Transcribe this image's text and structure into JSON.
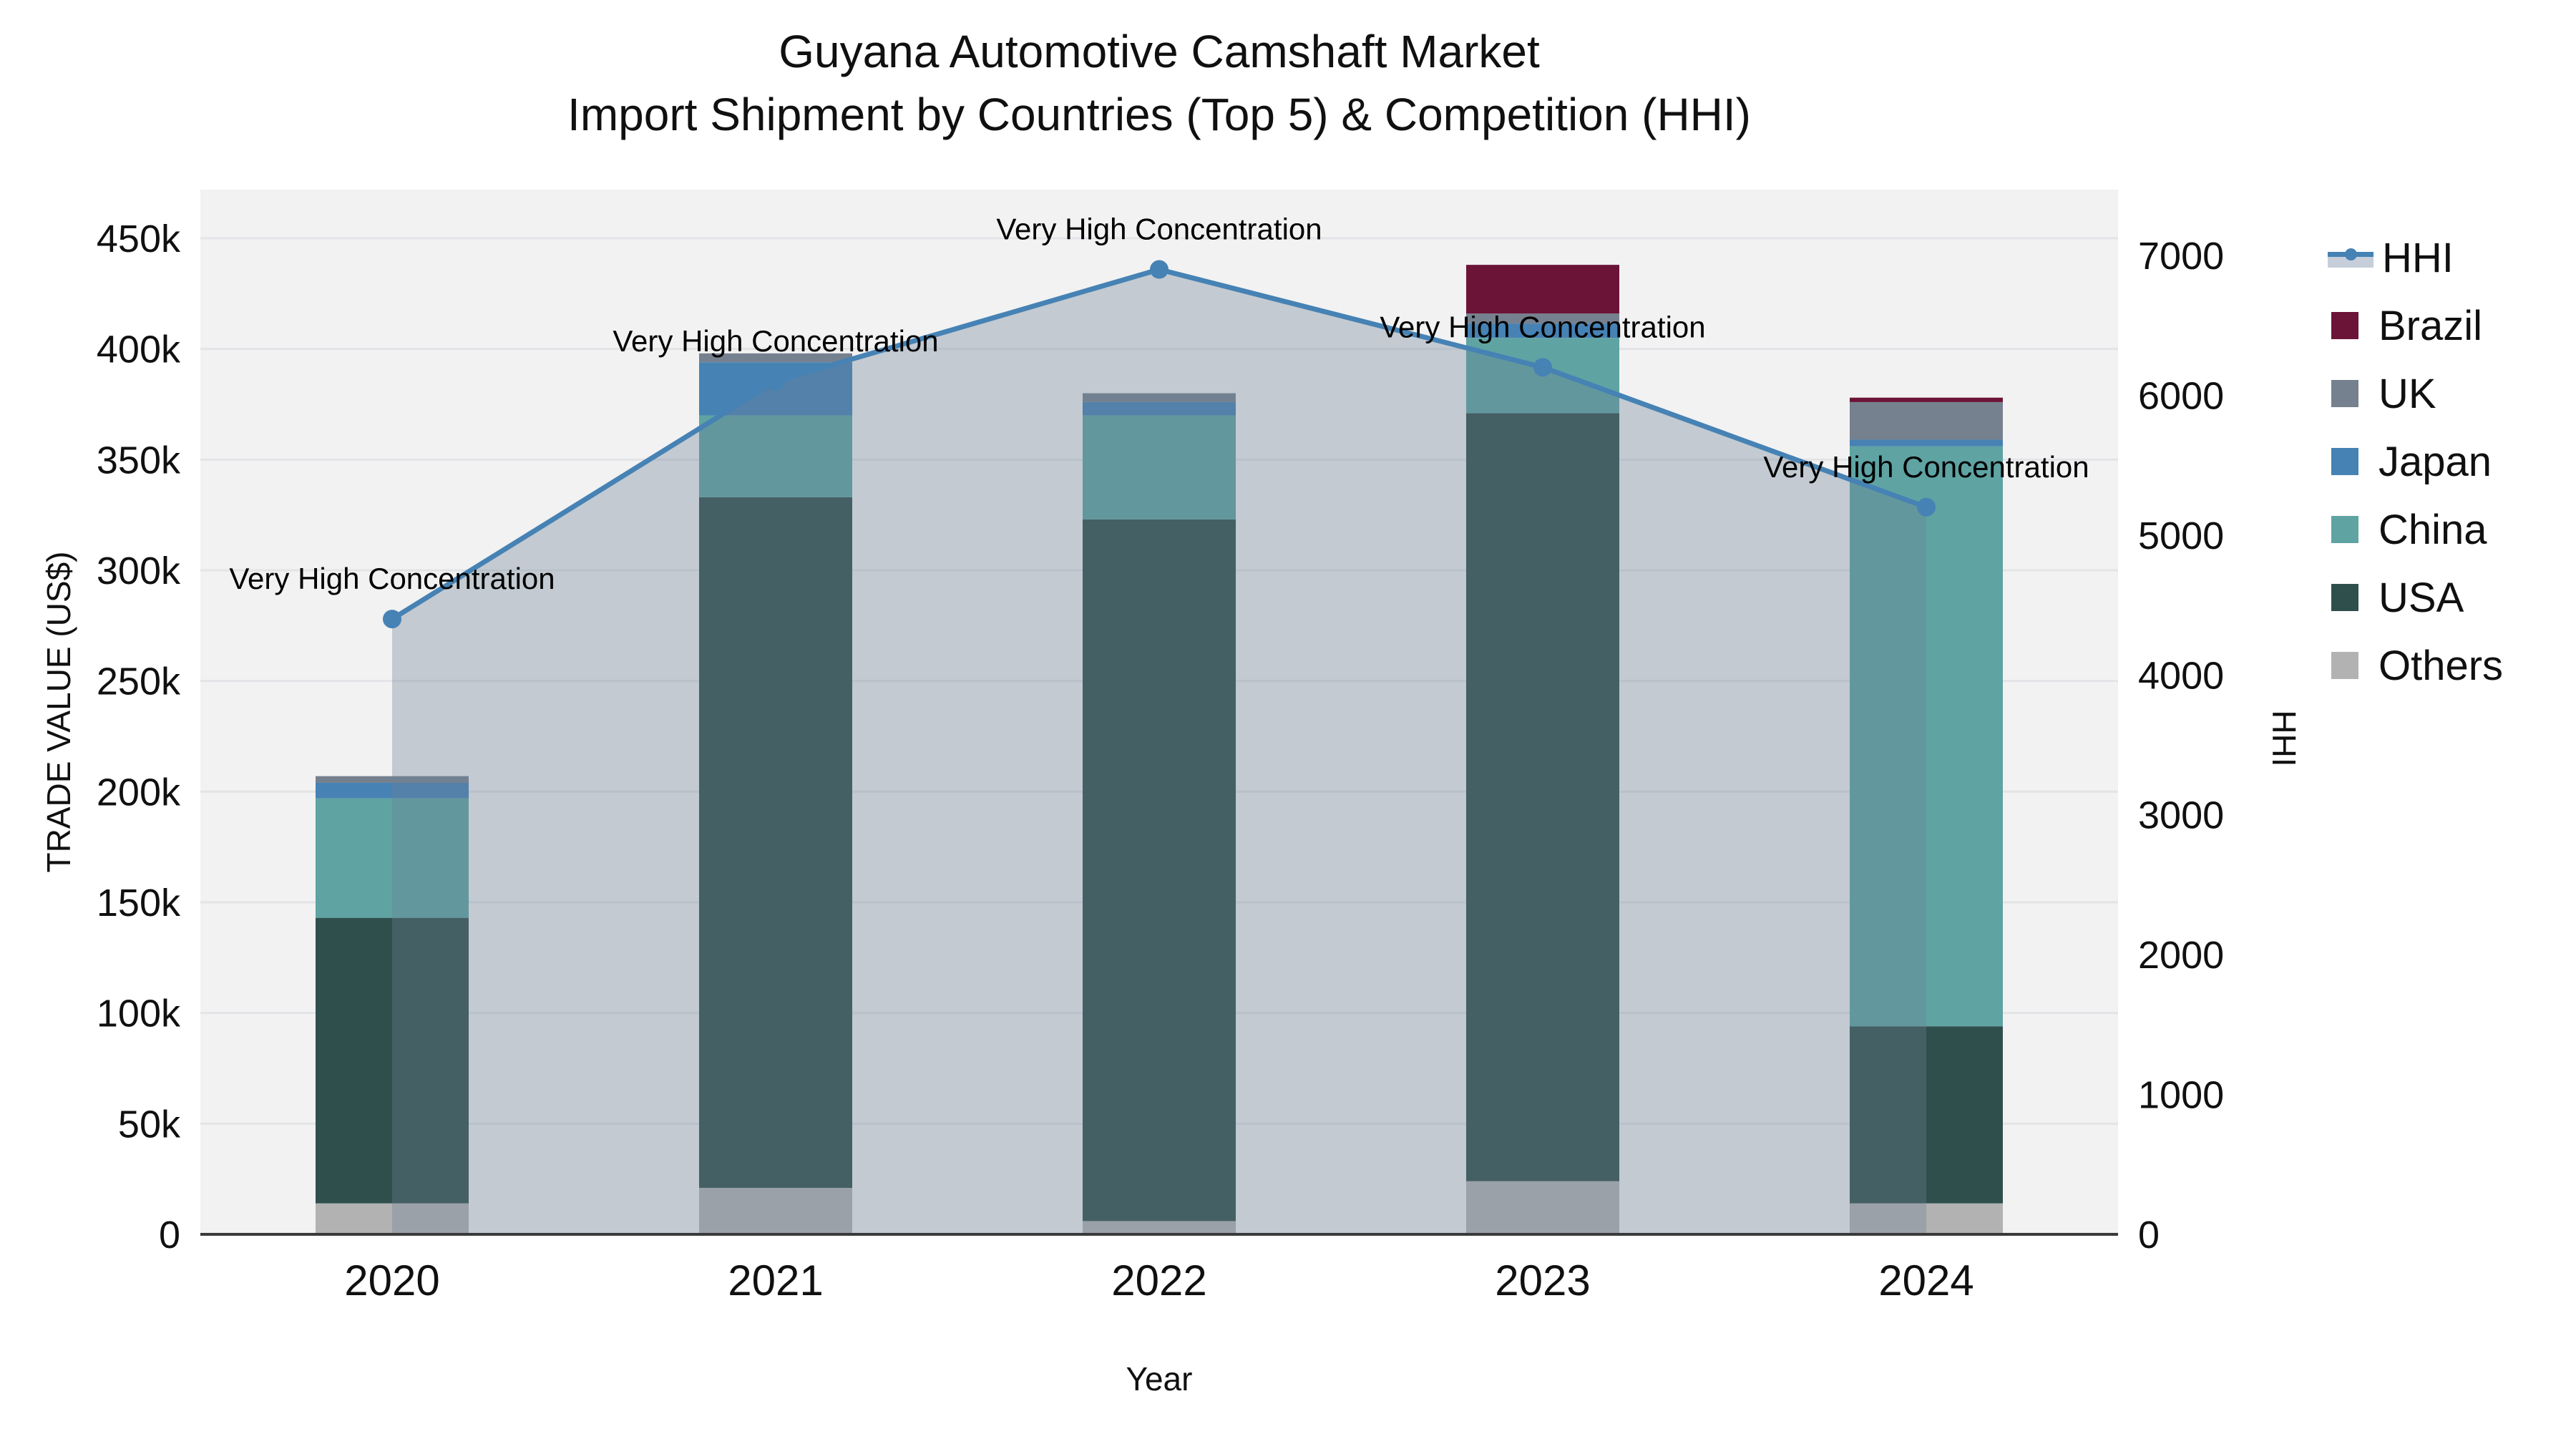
{
  "title": {
    "line1": "Guyana Automotive Camshaft Market",
    "line2": "Import Shipment by Countries (Top 5) & Competition (HHI)"
  },
  "axes": {
    "x_title": "Year",
    "y_left_title": "TRADE VALUE (US$)",
    "y_right_title": "HHI",
    "y_left_ticks": [
      {
        "v": 0,
        "label": "0"
      },
      {
        "v": 50000,
        "label": "50k"
      },
      {
        "v": 100000,
        "label": "100k"
      },
      {
        "v": 150000,
        "label": "150k"
      },
      {
        "v": 200000,
        "label": "200k"
      },
      {
        "v": 250000,
        "label": "250k"
      },
      {
        "v": 300000,
        "label": "300k"
      },
      {
        "v": 350000,
        "label": "350k"
      },
      {
        "v": 400000,
        "label": "400k"
      },
      {
        "v": 450000,
        "label": "450k"
      }
    ],
    "y_right_ticks": [
      {
        "v": 0,
        "label": "0"
      },
      {
        "v": 1000,
        "label": "1000"
      },
      {
        "v": 2000,
        "label": "2000"
      },
      {
        "v": 3000,
        "label": "3000"
      },
      {
        "v": 4000,
        "label": "4000"
      },
      {
        "v": 5000,
        "label": "5000"
      },
      {
        "v": 6000,
        "label": "6000"
      },
      {
        "v": 7000,
        "label": "7000"
      }
    ]
  },
  "legend": {
    "items": [
      {
        "label": "HHI",
        "color": "#4682B4",
        "type": "line",
        "band_color": "#C6CEDA"
      },
      {
        "label": "Brazil",
        "color": "#6B1437",
        "type": "swatch"
      },
      {
        "label": "UK",
        "color": "#76818F",
        "type": "swatch"
      },
      {
        "label": "Japan",
        "color": "#4682B4",
        "type": "swatch"
      },
      {
        "label": "China",
        "color": "#5FA3A3",
        "type": "swatch"
      },
      {
        "label": "USA",
        "color": "#2F4F4C",
        "type": "swatch"
      },
      {
        "label": "Others",
        "color": "#B2B2B2",
        "type": "swatch"
      }
    ]
  },
  "colors": {
    "plot_background": "#F2F2F2",
    "gridline": "#E2E4E7",
    "axis_line": "#3A3A3A",
    "hhi_line": "#4682B4",
    "hhi_area_fill": "rgba(110,128,150,0.35)",
    "text": "#101010"
  },
  "chart_data": {
    "type": "bar",
    "subtype": "stacked bars with overlaid line (secondary axis)",
    "categories": [
      "2020",
      "2021",
      "2022",
      "2023",
      "2024"
    ],
    "stack_order_bottom_to_top": [
      "Others",
      "USA",
      "China",
      "Japan",
      "UK",
      "Brazil"
    ],
    "series": [
      {
        "name": "Others",
        "color": "#B2B2B2",
        "values": [
          14000,
          21000,
          6000,
          24000,
          14000
        ]
      },
      {
        "name": "USA",
        "color": "#2F4F4C",
        "values": [
          129000,
          312000,
          317000,
          347000,
          80000
        ]
      },
      {
        "name": "China",
        "color": "#5FA3A3",
        "values": [
          54000,
          37000,
          47000,
          34000,
          262000
        ]
      },
      {
        "name": "Japan",
        "color": "#4682B4",
        "values": [
          7000,
          24000,
          6000,
          6500,
          3000
        ]
      },
      {
        "name": "UK",
        "color": "#76818F",
        "values": [
          3000,
          4000,
          4000,
          4500,
          17000
        ]
      },
      {
        "name": "Brazil",
        "color": "#6B1437",
        "values": [
          0,
          0,
          0,
          22000,
          2000
        ]
      }
    ],
    "bar_totals": [
      207000,
      398000,
      380000,
      438000,
      378000
    ],
    "line_series": {
      "name": "HHI",
      "color": "#4682B4",
      "values": [
        4400,
        6100,
        6900,
        6200,
        5200
      ],
      "area_fill": "rgba(110,128,150,0.35)"
    },
    "annotation_text": "Very High Concentration",
    "annotation_on_every_point": true,
    "xlabel": "Year",
    "ylabel_left": "TRADE VALUE (US$)",
    "ylabel_right": "HHI",
    "y_left_range": [
      0,
      471000
    ],
    "y_right_range": [
      0,
      7400
    ],
    "grid": true,
    "legend_position": "right"
  }
}
